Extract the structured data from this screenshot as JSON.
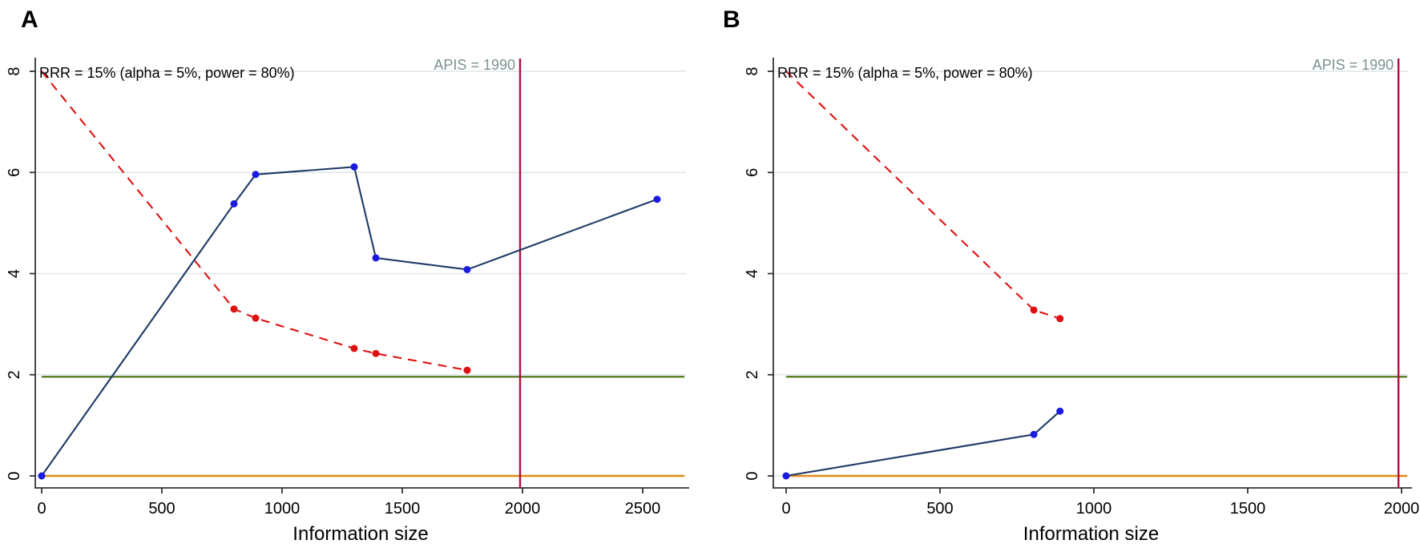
{
  "figure": {
    "background": "#ffffff"
  },
  "colors": {
    "navy": "#1f3a66",
    "blue": "#1b1be0",
    "red": "#dd1111",
    "green": "#53771c",
    "orange": "#df8a16",
    "crimson": "#a81240",
    "apis_text": "#7d9191",
    "grid": "#dde7e9",
    "axis": "#333333",
    "text": "#000000"
  },
  "chart_data": [
    {
      "panel_label": "A",
      "type": "line",
      "annotation": "RRR = 15% (alpha = 5%, power = 80%)",
      "apis_annotation": "APIS = 1990",
      "apis_value": 1990,
      "xlabel": "Information size",
      "x_ticks": [
        0,
        500,
        1000,
        1500,
        2000,
        2500
      ],
      "y_ticks": [
        0,
        2,
        4,
        6,
        8
      ],
      "xlim": [
        0,
        2680
      ],
      "ylim": [
        0,
        8.5
      ],
      "grid": true,
      "legend": "none",
      "ref_lines": [
        {
          "name": "conventional-significance-line",
          "value": 1.96,
          "color_key": "green"
        },
        {
          "name": "null-line",
          "value": 0,
          "color_key": "orange"
        }
      ],
      "series": [
        {
          "name": "tsa-monitoring-boundary",
          "style": "dashed",
          "color_key": "red",
          "marker_color_key": "red",
          "marker_start_index": 1,
          "points": [
            [
              0,
              8.0
            ],
            [
              800,
              3.3
            ],
            [
              890,
              3.12
            ],
            [
              1300,
              2.52
            ],
            [
              1390,
              2.42
            ],
            [
              1770,
              2.09
            ]
          ]
        },
        {
          "name": "cumulative-z-score",
          "style": "solid",
          "color_key": "navy",
          "marker_color_key": "blue",
          "marker_start_index": 0,
          "points": [
            [
              0,
              0
            ],
            [
              800,
              5.38
            ],
            [
              890,
              5.96
            ],
            [
              1300,
              6.11
            ],
            [
              1390,
              4.31
            ],
            [
              1770,
              4.08
            ],
            [
              2560,
              5.47
            ]
          ]
        }
      ]
    },
    {
      "panel_label": "B",
      "type": "line",
      "annotation": "RRR = 15% (alpha = 5%, power = 80%)",
      "apis_annotation": "APIS = 1990",
      "apis_value": 1990,
      "xlabel": "Information size",
      "x_ticks": [
        0,
        500,
        1000,
        1500,
        2000
      ],
      "y_ticks": [
        0,
        2,
        4,
        6,
        8
      ],
      "xlim": [
        0,
        2020
      ],
      "ylim": [
        0,
        8.5
      ],
      "grid": true,
      "legend": "none",
      "ref_lines": [
        {
          "name": "conventional-significance-line",
          "value": 1.96,
          "color_key": "green"
        },
        {
          "name": "null-line",
          "value": 0,
          "color_key": "orange"
        }
      ],
      "series": [
        {
          "name": "tsa-monitoring-boundary",
          "style": "dashed",
          "color_key": "red",
          "marker_color_key": "red",
          "marker_start_index": 1,
          "points": [
            [
              0,
              8.0
            ],
            [
              805,
              3.28
            ],
            [
              890,
              3.11
            ]
          ]
        },
        {
          "name": "cumulative-z-score",
          "style": "solid",
          "color_key": "navy",
          "marker_color_key": "blue",
          "marker_start_index": 0,
          "points": [
            [
              0,
              0
            ],
            [
              805,
              0.82
            ],
            [
              890,
              1.28
            ]
          ]
        }
      ]
    }
  ]
}
